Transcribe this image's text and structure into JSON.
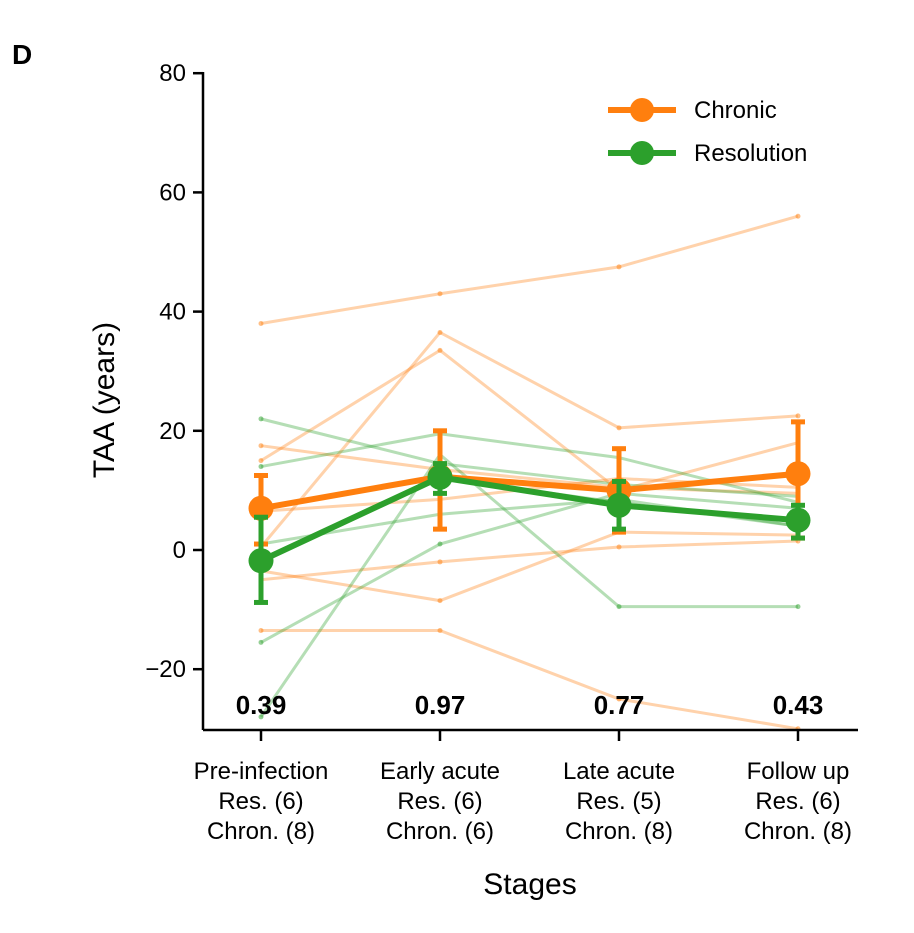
{
  "panel_label": "D",
  "chart_data": {
    "type": "line",
    "xlabel": "Stages",
    "ylabel": "TAA (years)",
    "ylim": [
      -30,
      80
    ],
    "yticks": [
      -20,
      0,
      20,
      40,
      60,
      80
    ],
    "ytick_labels": [
      "−20",
      "0",
      "20",
      "40",
      "60",
      "80"
    ],
    "categories": [
      {
        "line1": "Pre-infection",
        "line2": "Res. (6)",
        "line3": "Chron. (8)"
      },
      {
        "line1": "Early acute",
        "line2": "Res. (6)",
        "line3": "Chron. (6)"
      },
      {
        "line1": "Late acute",
        "line2": "Res. (5)",
        "line3": "Chron. (8)"
      },
      {
        "line1": "Follow up",
        "line2": "Res. (6)",
        "line3": "Chron. (8)"
      }
    ],
    "p_values": [
      "0.39",
      "0.97",
      "0.77",
      "0.43"
    ],
    "legend_position": "top-right",
    "series": [
      {
        "name": "Chronic",
        "color": "#ff7f0e",
        "mean": [
          7,
          12.3,
          10,
          12.8
        ],
        "err_low": [
          1,
          3.5,
          3,
          2
        ],
        "err_high": [
          12.5,
          20,
          17,
          21.5
        ]
      },
      {
        "name": "Resolution",
        "color": "#2ca02c",
        "mean": [
          -1.8,
          12.2,
          7.5,
          5
        ],
        "err_low": [
          -8.8,
          9.5,
          3.5,
          2
        ],
        "err_high": [
          5.5,
          14.5,
          11.5,
          7.5
        ]
      }
    ],
    "individual_lines": {
      "chronic": [
        [
          38,
          43,
          47.5,
          56
        ],
        [
          17.5,
          13.5,
          10.5,
          9.5
        ],
        [
          15,
          33.5,
          10,
          18
        ],
        [
          0.5,
          36.5,
          20.5,
          22.5
        ],
        [
          -3.5,
          -8.5,
          3,
          2.5
        ],
        [
          -5,
          -2,
          0.5,
          1.5
        ],
        [
          -13.5,
          -13.5,
          -25,
          -30
        ],
        [
          6.5,
          8.5,
          12,
          10.5
        ]
      ],
      "resolution": [
        [
          22,
          14.5,
          11,
          9
        ],
        [
          14,
          19.5,
          15.5,
          8
        ],
        [
          -15.5,
          1,
          9.5,
          7
        ],
        [
          -28,
          16,
          -9.5,
          -9.5
        ],
        [
          1,
          6,
          8.5,
          4
        ],
        [
          -2,
          12,
          8,
          4
        ]
      ]
    }
  }
}
